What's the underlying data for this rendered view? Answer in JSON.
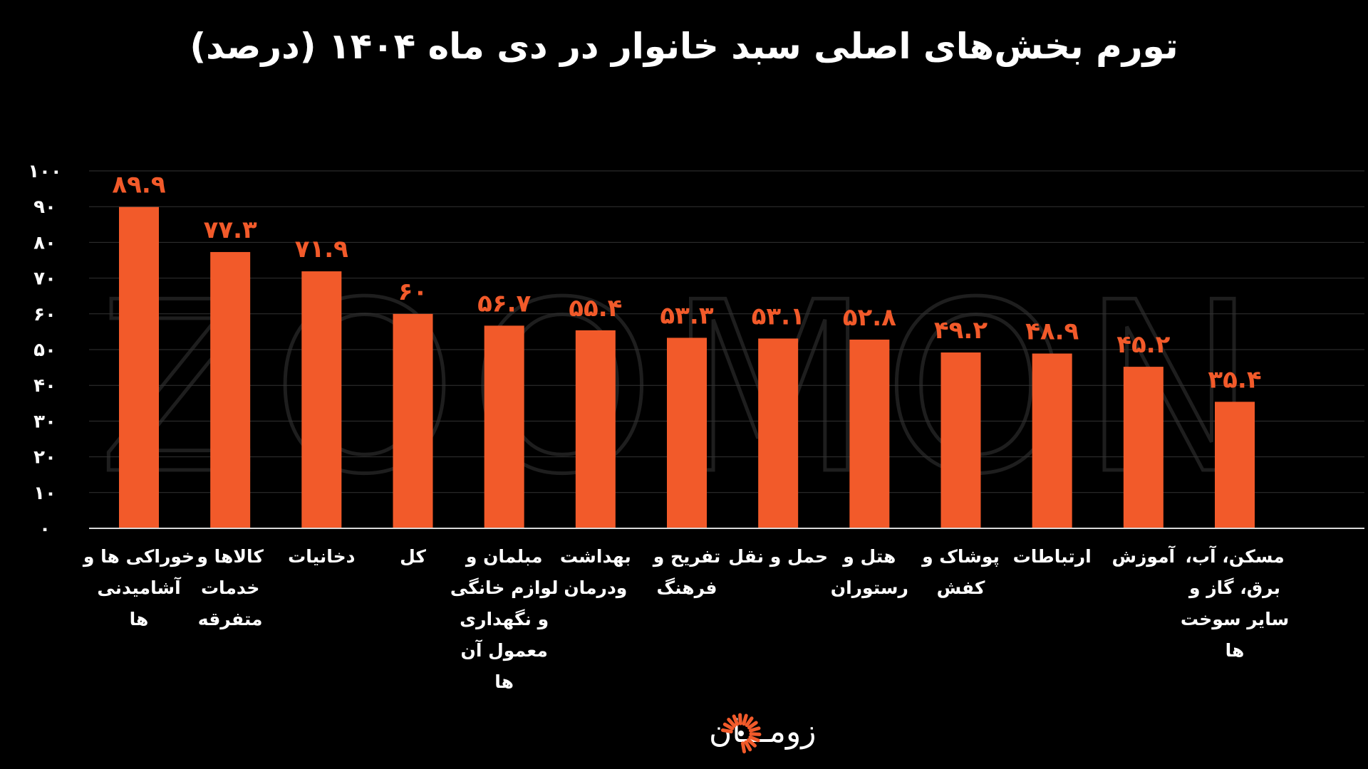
{
  "colors": {
    "background": "#000000",
    "bar": "#f25a2a",
    "value_label": "#f25a2a",
    "text": "#ffffff",
    "grid": "#333333",
    "axis": "#d9d9d9",
    "watermark": "#1e1e1e"
  },
  "watermark": "ZOOMON",
  "brand": {
    "name": "زومـــان",
    "logo_icon": "sunburst-logo-icon"
  },
  "chart_data": {
    "type": "bar",
    "title": "تورم بخش‌های اصلی سبد خانوار در دی ماه ۱۴۰۴ (درصد)",
    "xlabel": "",
    "ylabel": "",
    "ylim": [
      0,
      100
    ],
    "grid": true,
    "legend": "none",
    "yticks": [
      0,
      10,
      20,
      30,
      40,
      50,
      60,
      70,
      80,
      90,
      100
    ],
    "ytick_labels": [
      "۰",
      "۱۰",
      "۲۰",
      "۳۰",
      "۴۰",
      "۵۰",
      "۶۰",
      "۷۰",
      "۸۰",
      "۹۰",
      "۱۰۰"
    ],
    "categories": [
      [
        "خوراکی ها و",
        "آشامیدنی",
        "ها"
      ],
      [
        "کالاها و",
        "خدمات",
        "متفرقه"
      ],
      [
        "دخانیات"
      ],
      [
        "کل"
      ],
      [
        "مبلمان و",
        "لوازم خانگی",
        "و نگهداری",
        "معمول آن",
        "ها"
      ],
      [
        "بهداشت",
        "ودرمان"
      ],
      [
        "تفریح و",
        "فرهنگ"
      ],
      [
        "حمل و نقل"
      ],
      [
        "هتل و",
        "رستوران"
      ],
      [
        "پوشاک و",
        "کفش"
      ],
      [
        "ارتباطات"
      ],
      [
        "آموزش"
      ],
      [
        "مسکن، آب،",
        "برق، گاز و",
        "سایر سوخت",
        "ها"
      ]
    ],
    "values": [
      89.9,
      77.3,
      71.9,
      60,
      56.7,
      55.4,
      53.3,
      53.1,
      52.8,
      49.2,
      48.9,
      45.2,
      35.4
    ],
    "value_labels": [
      "۸۹.۹",
      "۷۷.۳",
      "۷۱.۹",
      "۶۰",
      "۵۶.۷",
      "۵۵.۴",
      "۵۳.۳",
      "۵۳.۱",
      "۵۲.۸",
      "۴۹.۲",
      "۴۸.۹",
      "۴۵.۲",
      "۳۵.۴"
    ]
  }
}
